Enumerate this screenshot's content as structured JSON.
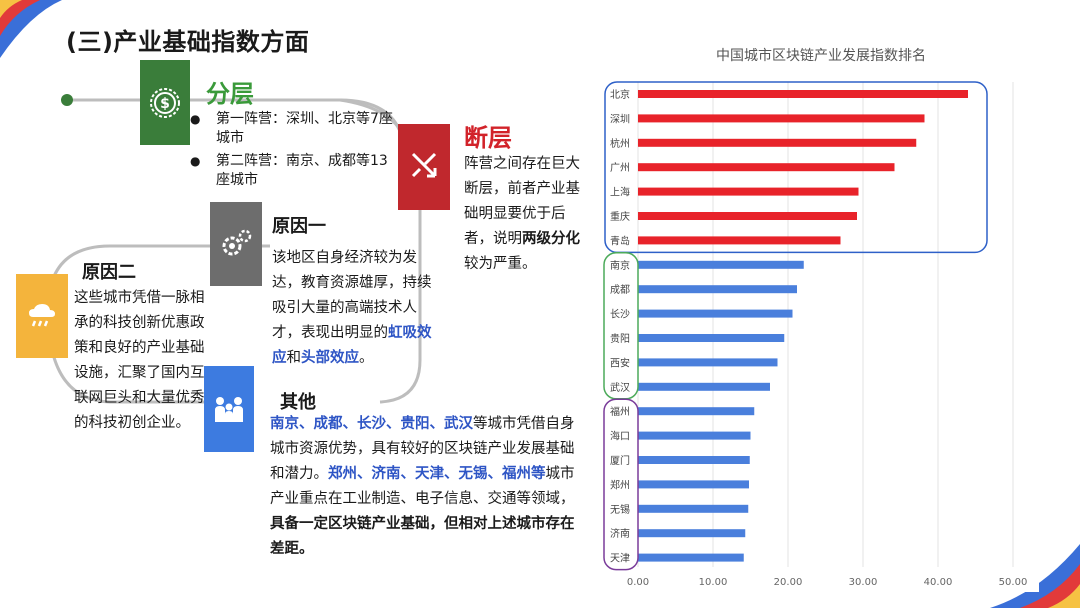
{
  "title": "(三)产业基础指数方面",
  "layer": {
    "heading": "分层",
    "bullets": [
      "第一阵营：深圳、北京等7座城市",
      "第二阵营：南京、成都等13座城市"
    ]
  },
  "fault": {
    "heading": "断层",
    "body_1": "阵营之间存在巨大断层，前者产业基础明显要优于后者，说明",
    "body_bold": "两级分化",
    "body_2": "较为严重。"
  },
  "reason1": {
    "heading": "原因一",
    "body": "该地区自身经济较为发达，教育资源雄厚，持续吸引大量的高端技术人才，表现出明显的",
    "hl1": "虹吸效应",
    "mid": "和",
    "hl2": "头部效应",
    "end": "。"
  },
  "reason2": {
    "heading": "原因二",
    "body": "这些城市凭借一脉相承的科技创新优惠政策和良好的产业基础设施，汇聚了国内互联网巨头和大量优秀的科技初创企业。"
  },
  "other": {
    "heading": "其他",
    "cities_a": "南京、成都、长沙、贵阳、武汉",
    "text_a": "等城市凭借自身城市资源优势，具有较好的区块链产业发展基础和潜力。",
    "cities_b": "郑州、济南、天津、无锡、福州等",
    "text_b": "城市产业重点在工业制造、电子信息、交通等领域，",
    "bold_end": "具备一定区块链产业基础，但相对上述城市存在差距。"
  },
  "icons": {
    "layer": "money-icon",
    "fault": "split-arrows-icon",
    "reason1": "gears-icon",
    "reason2": "rain-cloud-icon",
    "other": "people-icon"
  },
  "colors": {
    "green": "#3a7d3a",
    "red": "#c0282d",
    "gray": "#6d6d6d",
    "yellow": "#f4b43c",
    "blue": "#3d7be0",
    "bar_red": "#e8232a",
    "bar_blue": "#4a7fdc",
    "group_blue": "#2e60c8",
    "group_green": "#4caa5a",
    "group_purple": "#7a3c9a",
    "highlight": "#2e55c5"
  },
  "chart_data": {
    "type": "bar",
    "orientation": "horizontal",
    "title": "中国城市区块链产业发展指数排名",
    "categories": [
      "北京",
      "深圳",
      "杭州",
      "广州",
      "上海",
      "重庆",
      "青岛",
      "南京",
      "成都",
      "长沙",
      "贵阳",
      "西安",
      "武汉",
      "福州",
      "海口",
      "厦门",
      "郑州",
      "无锡",
      "济南",
      "天津"
    ],
    "values": [
      44.0,
      38.2,
      37.1,
      34.2,
      29.4,
      29.2,
      27.0,
      22.1,
      21.2,
      20.6,
      19.5,
      18.6,
      17.6,
      15.5,
      15.0,
      14.9,
      14.8,
      14.7,
      14.3,
      14.1
    ],
    "groups": [
      {
        "from": 0,
        "to": 6,
        "color": "#2e60c8"
      },
      {
        "from": 7,
        "to": 12,
        "color": "#4caa5a"
      },
      {
        "from": 13,
        "to": 19,
        "color": "#7a3c9a"
      }
    ],
    "xlim": [
      0,
      50
    ],
    "xticks": [
      "0.00",
      "10.00",
      "20.00",
      "30.00",
      "40.00",
      "50.00"
    ],
    "xlabel": "",
    "ylabel": "",
    "grid": true
  }
}
